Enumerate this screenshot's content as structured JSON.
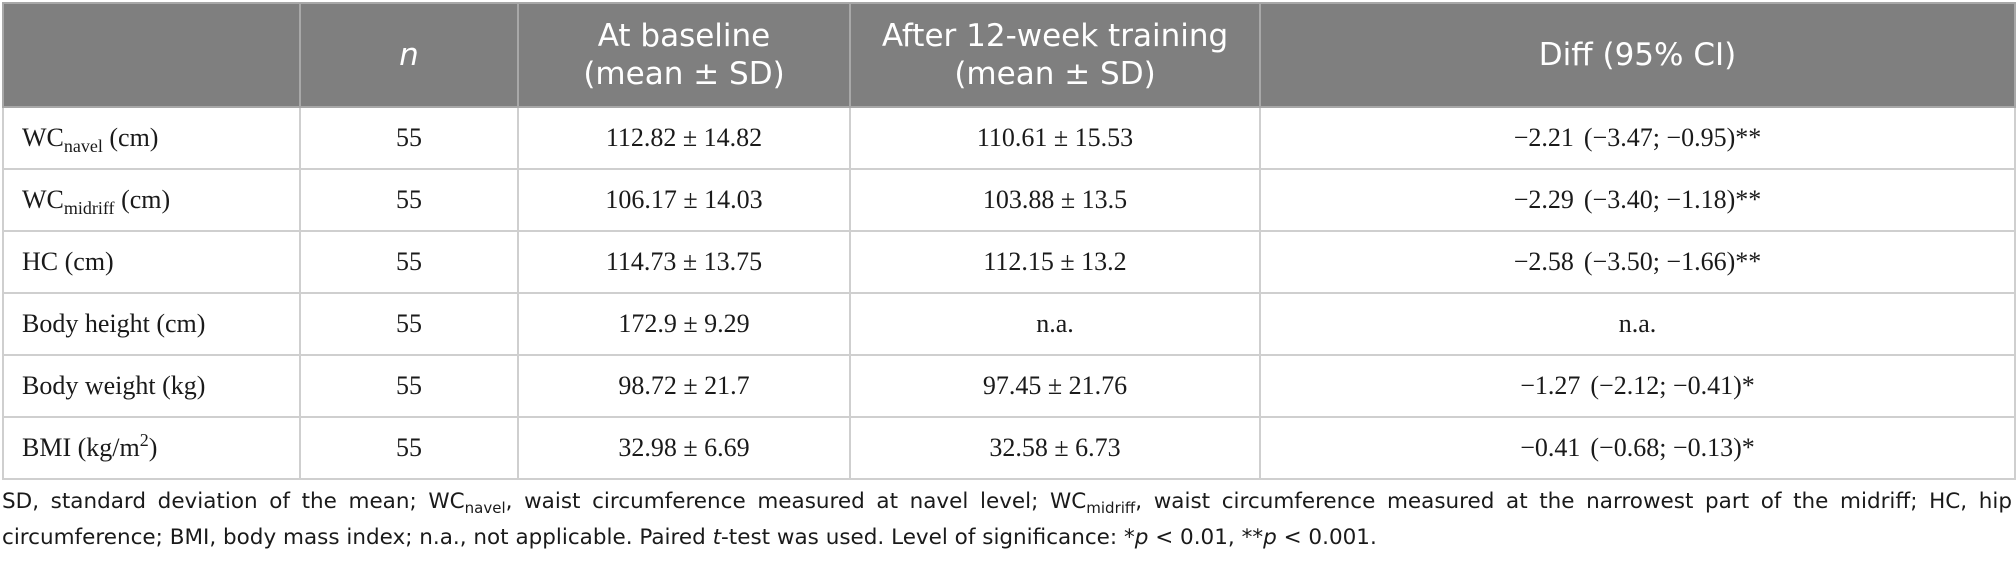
{
  "table": {
    "headers": {
      "label": "",
      "n": "n",
      "baseline_line1": "At baseline",
      "baseline_line2": "(mean ± SD)",
      "after_line1": "After 12-week training",
      "after_line2": "(mean ± SD)",
      "diff": "Diff (95% CI)"
    },
    "rows": [
      {
        "label": "WC",
        "sub": "navel",
        "suffix": " (cm)",
        "n": "55",
        "baseline": "112.82 ± 14.82",
        "after": "110.61 ± 15.53",
        "diff": "−2.21",
        "ci": "(−3.47; −0.95)**"
      },
      {
        "label": "WC",
        "sub": "midriff",
        "suffix": " (cm)",
        "n": "55",
        "baseline": "106.17 ± 14.03",
        "after": "103.88 ± 13.5",
        "diff": "−2.29",
        "ci": "(−3.40; −1.18)**"
      },
      {
        "label": "HC (cm)",
        "n": "55",
        "baseline": "114.73 ± 13.75",
        "after": "112.15 ± 13.2",
        "diff": "−2.58",
        "ci": "(−3.50; −1.66)**"
      },
      {
        "label": "Body height (cm)",
        "n": "55",
        "baseline": "172.9 ± 9.29",
        "after": "n.a.",
        "diff": "n.a.",
        "ci": ""
      },
      {
        "label": "Body weight (kg)",
        "n": "55",
        "baseline": "98.72 ± 21.7",
        "after": "97.45 ± 21.76",
        "diff": "−1.27",
        "ci": "(−2.12; −0.41)*"
      },
      {
        "label": "BMI (kg/m",
        "sup": "2",
        "suffix": ")",
        "n": "55",
        "baseline": "32.98 ± 6.69",
        "after": "32.58 ± 6.73",
        "diff": "−0.41",
        "ci": "(−0.68; −0.13)*"
      }
    ]
  },
  "footnote": {
    "p1": "SD, standard deviation of the mean; WC",
    "s1": "navel",
    "p2": ", waist circumference measured at navel level; WC",
    "s2": "midriff",
    "p3": ", waist circumference measured at the narrowest part of the midriff; HC, hip circumference; BMI, body mass index; n.a., not applicable. Paired ",
    "t_italic": "t",
    "p4": "-test was used. Level of significance: *",
    "p_italic1": "p",
    "p5": " < 0.01, **",
    "p_italic2": "p",
    "p6": " < 0.001."
  }
}
